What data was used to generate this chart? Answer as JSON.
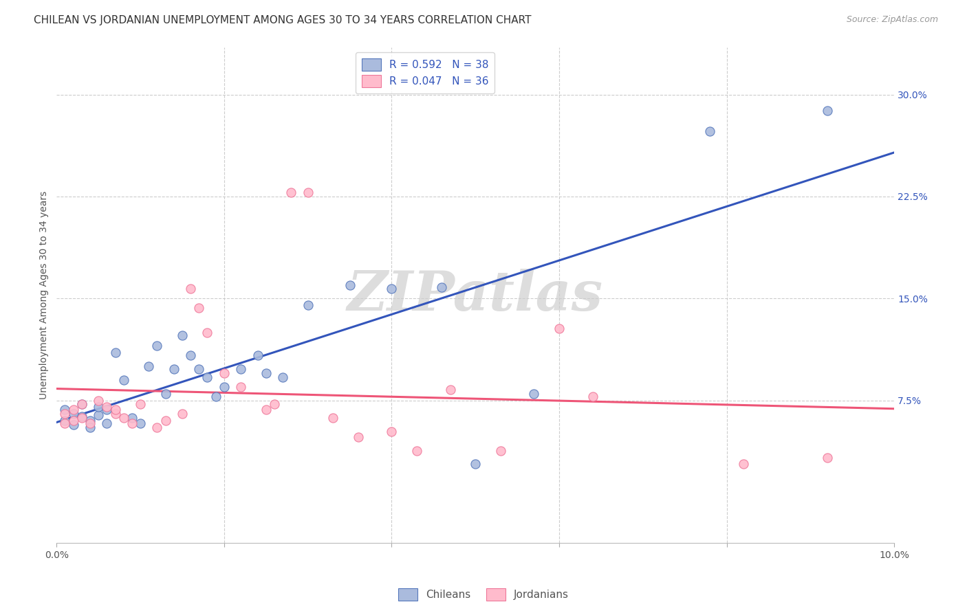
{
  "title": "CHILEAN VS JORDANIAN UNEMPLOYMENT AMONG AGES 30 TO 34 YEARS CORRELATION CHART",
  "source": "Source: ZipAtlas.com",
  "ylabel": "Unemployment Among Ages 30 to 34 years",
  "xlim": [
    0.0,
    0.1
  ],
  "ylim": [
    -0.03,
    0.335
  ],
  "background_color": "#ffffff",
  "grid_color": "#cccccc",
  "blue_scatter_color": "#aabbdd",
  "pink_scatter_color": "#ffbbcc",
  "blue_edge_color": "#5577bb",
  "pink_edge_color": "#ee7799",
  "blue_line_color": "#3355bb",
  "pink_line_color": "#ee5577",
  "legend_blue_label": "R = 0.592   N = 38",
  "legend_pink_label": "R = 0.047   N = 36",
  "chilean_label": "Chileans",
  "jordanian_label": "Jordanians",
  "watermark": "ZIPatlas",
  "title_fontsize": 11,
  "axis_label_fontsize": 10,
  "tick_fontsize": 10,
  "legend_fontsize": 11,
  "source_fontsize": 9,
  "chileans_x": [
    0.001,
    0.001,
    0.002,
    0.002,
    0.003,
    0.003,
    0.004,
    0.004,
    0.005,
    0.005,
    0.006,
    0.006,
    0.007,
    0.008,
    0.009,
    0.01,
    0.011,
    0.012,
    0.013,
    0.014,
    0.015,
    0.016,
    0.017,
    0.018,
    0.019,
    0.02,
    0.022,
    0.024,
    0.025,
    0.027,
    0.03,
    0.035,
    0.04,
    0.046,
    0.05,
    0.057,
    0.078,
    0.092
  ],
  "chileans_y": [
    0.06,
    0.068,
    0.057,
    0.065,
    0.063,
    0.072,
    0.06,
    0.055,
    0.064,
    0.07,
    0.058,
    0.068,
    0.11,
    0.09,
    0.062,
    0.058,
    0.1,
    0.115,
    0.08,
    0.098,
    0.123,
    0.108,
    0.098,
    0.092,
    0.078,
    0.085,
    0.098,
    0.108,
    0.095,
    0.092,
    0.145,
    0.16,
    0.157,
    0.158,
    0.028,
    0.08,
    0.273,
    0.288
  ],
  "jordanians_x": [
    0.001,
    0.001,
    0.002,
    0.002,
    0.003,
    0.003,
    0.004,
    0.005,
    0.006,
    0.007,
    0.007,
    0.008,
    0.009,
    0.01,
    0.012,
    0.013,
    0.015,
    0.016,
    0.017,
    0.018,
    0.02,
    0.022,
    0.025,
    0.026,
    0.028,
    0.03,
    0.033,
    0.036,
    0.04,
    0.043,
    0.047,
    0.053,
    0.06,
    0.064,
    0.082,
    0.092
  ],
  "jordanians_y": [
    0.065,
    0.058,
    0.068,
    0.06,
    0.072,
    0.062,
    0.058,
    0.075,
    0.07,
    0.065,
    0.068,
    0.062,
    0.058,
    0.072,
    0.055,
    0.06,
    0.065,
    0.157,
    0.143,
    0.125,
    0.095,
    0.085,
    0.068,
    0.072,
    0.228,
    0.228,
    0.062,
    0.048,
    0.052,
    0.038,
    0.083,
    0.038,
    0.128,
    0.078,
    0.028,
    0.033
  ]
}
